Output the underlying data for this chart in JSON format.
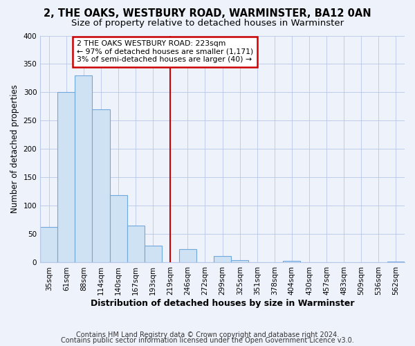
{
  "title": "2, THE OAKS, WESTBURY ROAD, WARMINSTER, BA12 0AN",
  "subtitle": "Size of property relative to detached houses in Warminster",
  "xlabel": "Distribution of detached houses by size in Warminster",
  "ylabel": "Number of detached properties",
  "bin_labels": [
    "35sqm",
    "61sqm",
    "88sqm",
    "114sqm",
    "140sqm",
    "167sqm",
    "193sqm",
    "219sqm",
    "246sqm",
    "272sqm",
    "299sqm",
    "325sqm",
    "351sqm",
    "378sqm",
    "404sqm",
    "430sqm",
    "457sqm",
    "483sqm",
    "509sqm",
    "536sqm",
    "562sqm"
  ],
  "bar_heights": [
    63,
    300,
    330,
    270,
    119,
    65,
    30,
    0,
    24,
    0,
    12,
    4,
    0,
    0,
    3,
    0,
    0,
    0,
    0,
    0,
    2
  ],
  "bar_color": "#cfe2f3",
  "bar_edge_color": "#6fa8dc",
  "vline_x_idx": 7,
  "vline_color": "#cc0000",
  "annotation_text": "2 THE OAKS WESTBURY ROAD: 223sqm\n← 97% of detached houses are smaller (1,171)\n3% of semi-detached houses are larger (40) →",
  "annotation_box_color": "#ffffff",
  "annotation_box_edge": "#cc0000",
  "ylim": [
    0,
    400
  ],
  "yticks": [
    0,
    50,
    100,
    150,
    200,
    250,
    300,
    350,
    400
  ],
  "footer_line1": "Contains HM Land Registry data © Crown copyright and database right 2024.",
  "footer_line2": "Contains public sector information licensed under the Open Government Licence v3.0.",
  "bg_color": "#eef2fb",
  "plot_bg_color": "#eef2fb",
  "title_fontsize": 10.5,
  "subtitle_fontsize": 9.5,
  "axis_label_fontsize": 9,
  "tick_fontsize": 7.5,
  "footer_fontsize": 7,
  "ylabel_fontsize": 8.5
}
